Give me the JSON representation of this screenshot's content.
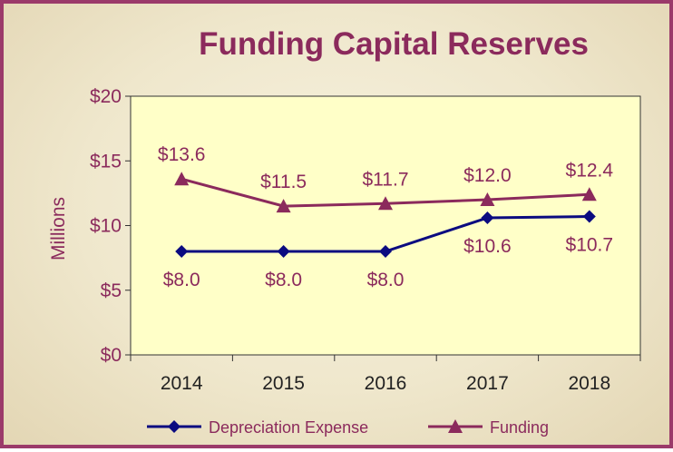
{
  "colors": {
    "frame": "#9b3a6a",
    "plot_bg": "#ffffc8",
    "depreciation": "#0b0b80",
    "funding": "#8b2a5c",
    "text": "#8b2a5c",
    "x_tick_text": "#222222"
  },
  "chart_data": {
    "type": "line",
    "title": "Funding Capital Reserves",
    "ylabel": "Millions",
    "xlabel": "",
    "categories": [
      "2014",
      "2015",
      "2016",
      "2017",
      "2018"
    ],
    "ylim": [
      0,
      20
    ],
    "yticks": [
      0,
      5,
      10,
      15,
      20
    ],
    "ytick_labels": [
      "$0",
      "$5",
      "$10",
      "$15",
      "$20"
    ],
    "grid": false,
    "legend_position": "bottom",
    "series": [
      {
        "name": "Depreciation Expense",
        "marker": "diamond",
        "values": [
          8.0,
          8.0,
          8.0,
          10.6,
          10.7
        ],
        "labels": [
          "$8.0",
          "$8.0",
          "$8.0",
          "$10.6",
          "$10.7"
        ]
      },
      {
        "name": "Funding",
        "marker": "triangle",
        "values": [
          13.6,
          11.5,
          11.7,
          12.0,
          12.4
        ],
        "labels": [
          "$13.6",
          "$11.5",
          "$11.7",
          "$12.0",
          "$12.4"
        ]
      }
    ]
  }
}
